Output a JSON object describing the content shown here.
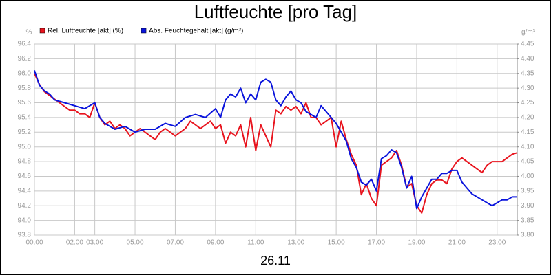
{
  "chart_data": {
    "type": "line",
    "title": "Luftfeuchte [pro Tag]",
    "xlabel": "26.11",
    "ylabel": "%",
    "y2label": "g/m³",
    "grid": true,
    "legend": "top-left",
    "xlim": [
      0,
      24
    ],
    "xticks": [
      {
        "value": 0,
        "label": "00:00"
      },
      {
        "value": 2,
        "label": "02:00"
      },
      {
        "value": 3,
        "label": "03:00"
      },
      {
        "value": 5,
        "label": "05:00"
      },
      {
        "value": 7,
        "label": "07:00"
      },
      {
        "value": 9,
        "label": "09:00"
      },
      {
        "value": 11,
        "label": "11:00"
      },
      {
        "value": 13,
        "label": "13:00"
      },
      {
        "value": 15,
        "label": "15:00"
      },
      {
        "value": 17,
        "label": "17:00"
      },
      {
        "value": 19,
        "label": "19:00"
      },
      {
        "value": 21,
        "label": "21:00"
      },
      {
        "value": 23,
        "label": "23:00"
      }
    ],
    "ylim": [
      93.8,
      96.4
    ],
    "yticks": [
      93.8,
      {
        "value": 94,
        "label": "94.0"
      },
      94.2,
      94.4,
      94.6,
      94.8,
      {
        "value": 95,
        "label": "95.0"
      },
      95.2,
      95.4,
      95.6,
      95.8,
      {
        "value": 96,
        "label": "96.0"
      },
      96.2,
      96.4
    ],
    "y2lim": [
      3.8,
      4.45
    ],
    "y2ticks": [
      {
        "value": 3.8,
        "label": "3.80"
      },
      3.85,
      {
        "value": 3.9,
        "label": "3.90"
      },
      3.95,
      {
        "value": 4,
        "label": "4.00"
      },
      4.05,
      {
        "value": 4.1,
        "label": "4.10"
      },
      4.15,
      {
        "value": 4.2,
        "label": "4.20"
      },
      4.25,
      {
        "value": 4.3,
        "label": "4.30"
      },
      4.35,
      {
        "value": 4.4,
        "label": "4.40"
      },
      4.45
    ],
    "series": [
      {
        "name": "Rel. Luftfeuchte [akt] (%)",
        "color": "#e8141e",
        "x": [
          0,
          0.25,
          0.5,
          0.75,
          1,
          1.25,
          1.5,
          1.75,
          2,
          2.25,
          2.5,
          2.75,
          3,
          3.25,
          3.5,
          3.75,
          4,
          4.25,
          4.5,
          4.75,
          5,
          5.25,
          5.5,
          5.75,
          6,
          6.25,
          6.5,
          6.75,
          7,
          7.25,
          7.5,
          7.75,
          8,
          8.25,
          8.5,
          8.75,
          9,
          9.25,
          9.5,
          9.75,
          10,
          10.25,
          10.5,
          10.75,
          11,
          11.25,
          11.5,
          11.75,
          12,
          12.25,
          12.5,
          12.75,
          13,
          13.25,
          13.5,
          13.75,
          14,
          14.25,
          14.5,
          14.75,
          15,
          15.25,
          15.5,
          15.75,
          16,
          16.25,
          16.5,
          16.75,
          17,
          17.25,
          17.5,
          17.75,
          18,
          18.25,
          18.5,
          18.75,
          19,
          19.25,
          19.5,
          19.75,
          20,
          20.25,
          20.5,
          20.75,
          21,
          21.25,
          21.5,
          21.75,
          22,
          22.25,
          22.5,
          22.75,
          23,
          23.25,
          23.5,
          23.75,
          24
        ],
        "values": [
          96.0,
          95.85,
          95.75,
          95.7,
          95.65,
          95.6,
          95.55,
          95.5,
          95.5,
          95.45,
          95.45,
          95.4,
          95.6,
          95.4,
          95.3,
          95.35,
          95.25,
          95.3,
          95.25,
          95.15,
          95.2,
          95.25,
          95.2,
          95.15,
          95.1,
          95.2,
          95.25,
          95.2,
          95.15,
          95.2,
          95.25,
          95.35,
          95.3,
          95.25,
          95.3,
          95.35,
          95.25,
          95.3,
          95.05,
          95.2,
          95.15,
          95.3,
          95.0,
          95.4,
          94.95,
          95.3,
          95.15,
          95.0,
          95.5,
          95.45,
          95.55,
          95.5,
          95.55,
          95.45,
          95.6,
          95.4,
          95.4,
          95.3,
          95.35,
          95.4,
          95.0,
          95.35,
          95.1,
          94.9,
          94.75,
          94.35,
          94.5,
          94.3,
          94.2,
          94.75,
          94.8,
          94.85,
          94.95,
          94.75,
          94.45,
          94.5,
          94.2,
          94.1,
          94.35,
          94.5,
          94.55,
          94.55,
          94.5,
          94.7,
          94.8,
          94.85,
          94.8,
          94.75,
          94.7,
          94.65,
          94.75,
          94.8,
          94.8,
          94.8,
          94.85,
          94.9,
          94.92
        ]
      },
      {
        "name": "Abs. Feuchtegehalt [akt] (g/m³)",
        "color": "#0a14dc",
        "axis": "y2",
        "x": [
          0,
          0.25,
          0.5,
          0.75,
          1,
          1.5,
          2,
          2.5,
          3,
          3.25,
          3.5,
          3.75,
          4,
          4.5,
          5,
          5.5,
          6,
          6.5,
          7,
          7.5,
          8,
          8.5,
          9,
          9.25,
          9.5,
          9.75,
          10,
          10.25,
          10.5,
          10.75,
          11,
          11.25,
          11.5,
          11.75,
          12,
          12.25,
          12.5,
          12.75,
          13,
          13.25,
          13.5,
          13.75,
          14,
          14.25,
          14.5,
          14.75,
          15,
          15.25,
          15.5,
          15.75,
          16,
          16.25,
          16.5,
          16.75,
          17,
          17.25,
          17.5,
          17.75,
          18,
          18.25,
          18.5,
          18.75,
          19,
          19.25,
          19.5,
          19.75,
          20,
          20.25,
          20.5,
          20.75,
          21,
          21.25,
          21.5,
          21.75,
          22,
          22.25,
          22.5,
          22.75,
          23,
          23.25,
          23.5,
          23.75,
          24
        ],
        "values": [
          4.36,
          4.31,
          4.29,
          4.28,
          4.26,
          4.25,
          4.24,
          4.23,
          4.25,
          4.2,
          4.18,
          4.17,
          4.16,
          4.17,
          4.15,
          4.16,
          4.16,
          4.18,
          4.17,
          4.2,
          4.21,
          4.2,
          4.23,
          4.2,
          4.26,
          4.28,
          4.27,
          4.3,
          4.25,
          4.28,
          4.26,
          4.32,
          4.33,
          4.32,
          4.26,
          4.24,
          4.27,
          4.29,
          4.26,
          4.25,
          4.22,
          4.21,
          4.2,
          4.24,
          4.22,
          4.2,
          4.18,
          4.15,
          4.12,
          4.06,
          4.03,
          3.98,
          3.97,
          3.99,
          3.95,
          4.06,
          4.07,
          4.09,
          4.08,
          4.03,
          3.96,
          4.0,
          3.89,
          3.93,
          3.96,
          3.99,
          3.99,
          4.01,
          4.01,
          4.02,
          4.02,
          3.98,
          3.96,
          3.94,
          3.93,
          3.92,
          3.91,
          3.9,
          3.91,
          3.92,
          3.92,
          3.93,
          3.93
        ]
      }
    ]
  }
}
